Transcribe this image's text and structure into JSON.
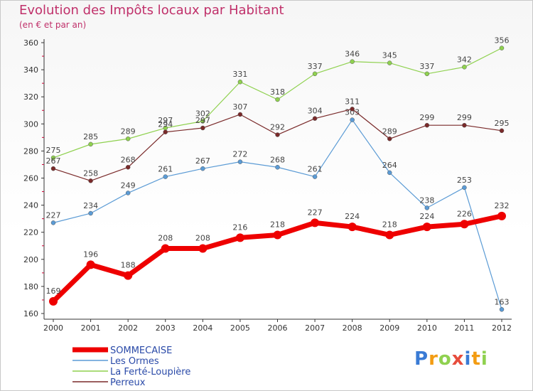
{
  "chart_data": {
    "type": "line",
    "title": "Evolution des Impôts locaux par Habitant",
    "subtitle": "(en € et par an)",
    "xlabel": "",
    "ylabel": "",
    "ylim": [
      160,
      360
    ],
    "yticks": [
      160,
      180,
      200,
      220,
      240,
      260,
      280,
      300,
      320,
      340,
      360
    ],
    "categories": [
      "2000",
      "2001",
      "2002",
      "2003",
      "2004",
      "2005",
      "2006",
      "2007",
      "2008",
      "2009",
      "2010",
      "2011",
      "2012"
    ],
    "series": [
      {
        "name": "SOMMECAISE",
        "color": "#ee0000",
        "emphasis": true,
        "values": [
          169,
          196,
          188,
          208,
          208,
          216,
          218,
          227,
          224,
          218,
          224,
          226,
          232
        ]
      },
      {
        "name": "Les Ormes",
        "color": "#5b9bd5",
        "emphasis": false,
        "values": [
          227,
          234,
          249,
          261,
          267,
          272,
          268,
          261,
          303,
          264,
          238,
          253,
          163
        ]
      },
      {
        "name": "La Ferté-Loupière",
        "color": "#8fd14f",
        "emphasis": false,
        "values": [
          275,
          285,
          289,
          297,
          302,
          331,
          318,
          337,
          346,
          345,
          337,
          342,
          356
        ]
      },
      {
        "name": "Perreux",
        "color": "#7a2a2a",
        "emphasis": false,
        "values": [
          267,
          258,
          268,
          294,
          297,
          307,
          292,
          304,
          311,
          289,
          299,
          299,
          295
        ]
      }
    ],
    "legend_position": "bottom-left",
    "grid": false
  },
  "branding": {
    "logo_letters": [
      "P",
      "r",
      "o",
      "x",
      "i",
      "t",
      "i"
    ],
    "logo_colors": [
      "#3a7bd5",
      "#f39c12",
      "#8fd14f",
      "#e74c3c",
      "#3a7bd5",
      "#f39c12",
      "#8fd14f"
    ]
  }
}
